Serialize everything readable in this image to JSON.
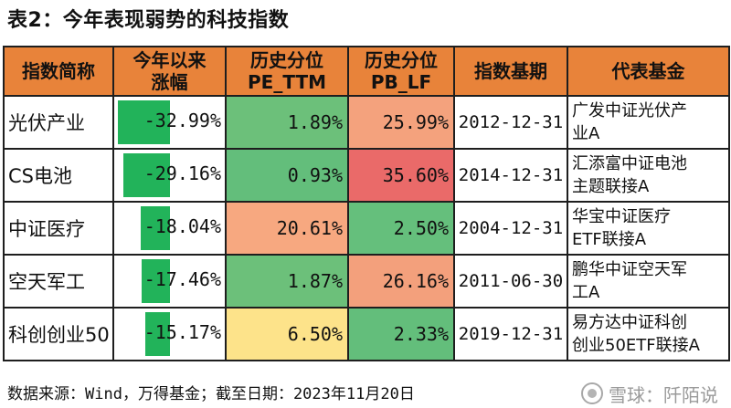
{
  "title": "表2：今年表现弱势的科技指数",
  "headers": [
    "指数简称",
    "今年以来涨幅",
    "历史分位PE_TTM",
    "历史分位PB_LF",
    "指数基期",
    "代表基金"
  ],
  "headers_lines": [
    [
      "指数简称"
    ],
    [
      "今年以来",
      "涨幅"
    ],
    [
      "历史分位",
      "PE_TTM"
    ],
    [
      "历史分位",
      "PB_LF"
    ],
    [
      "指数基期"
    ],
    [
      "代表基金"
    ]
  ],
  "rows": [
    {
      "name": "光伏产业",
      "change": "-32.99%",
      "change_value": -32.99,
      "pe": "1.89%",
      "pe_color": "#6cc07a",
      "pb": "25.99%",
      "pb_color": "#f4a27d",
      "base_date": "2012-12-31",
      "fund_lines": [
        "广发中证光伏产",
        "业A"
      ]
    },
    {
      "name": "CS电池",
      "change": "-29.16%",
      "change_value": -29.16,
      "pe": "0.93%",
      "pe_color": "#63be7b",
      "pb": "35.60%",
      "pb_color": "#ea6a69",
      "base_date": "2014-12-31",
      "fund_lines": [
        "汇添富中证电池",
        "主题联接A"
      ]
    },
    {
      "name": "中证医疗",
      "change": "-18.04%",
      "change_value": -18.04,
      "pe": "20.61%",
      "pe_color": "#f7a880",
      "pb": "2.50%",
      "pb_color": "#65bf7c",
      "base_date": "2004-12-31",
      "fund_lines": [
        "华宝中证医疗",
        "ETF联接A"
      ]
    },
    {
      "name": "空天军工",
      "change": "-17.46%",
      "change_value": -17.46,
      "pe": "1.87%",
      "pe_color": "#6cc07a",
      "pb": "26.16%",
      "pb_color": "#f3a07c",
      "base_date": "2011-06-30",
      "fund_lines": [
        "鹏华中证空天军",
        "工A"
      ]
    },
    {
      "name": "科创创业50",
      "change": "-15.17%",
      "change_value": -15.17,
      "pe": "6.50%",
      "pe_color": "#fde38a",
      "pb": "2.33%",
      "pb_color": "#63be7b",
      "base_date": "2019-12-31",
      "fund_lines": [
        "易方达中证科创",
        "创业50ETF联接A"
      ]
    }
  ],
  "change_bar_max": 32.99,
  "change_bar_color": "#22b35a",
  "header_color": "#e8833a",
  "footer": {
    "source": "数据来源：Wind，万得基金；截至日期：2023年11月20日"
  },
  "watermark": {
    "text": "雪球：阡陌说",
    "icon": "snowball-logo-icon"
  }
}
